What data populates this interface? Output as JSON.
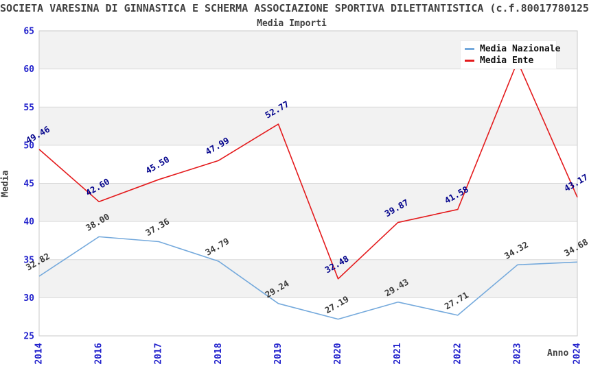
{
  "page": {
    "title": "SOCIETA VARESINA DI GINNASTICA E SCHERMA ASSOCIAZIONE SPORTIVA DILETTANTISTICA (c.f.80017780125",
    "subtitle": "Media Importi"
  },
  "chart_data": {
    "type": "line",
    "title": "SOCIETA VARESINA DI GINNASTICA E SCHERMA ASSOCIAZIONE SPORTIVA DILETTANTISTICA (c.f.80017780125",
    "subtitle": "Media Importi",
    "xlabel": "Anno",
    "ylabel": "Media",
    "ylim": [
      25,
      65
    ],
    "ytick_step": 5,
    "yticks": [
      25,
      30,
      35,
      40,
      45,
      50,
      55,
      60,
      65
    ],
    "grid": "horizontal",
    "band_colors": [
      "#f2f2f2",
      "#ffffff"
    ],
    "legend_position": "top-right",
    "categories": [
      "2014",
      "2016",
      "2017",
      "2018",
      "2019",
      "2020",
      "2021",
      "2022",
      "2023",
      "2024"
    ],
    "series": [
      {
        "name": "Media Nazionale",
        "color": "#74a9dc",
        "label_color": "#3a3a3a",
        "values": [
          32.82,
          38.0,
          37.36,
          34.79,
          29.24,
          27.19,
          29.43,
          27.71,
          34.32,
          34.68
        ],
        "labels": [
          "32.82",
          "38.00",
          "37.36",
          "34.79",
          "29.24",
          "27.19",
          "29.43",
          "27.71",
          "34.32",
          "34.68"
        ]
      },
      {
        "name": "Media Ente",
        "color": "#e41a1c",
        "label_color": "#00008b",
        "values": [
          49.46,
          42.6,
          45.5,
          47.99,
          52.77,
          32.48,
          39.87,
          41.58,
          61.0,
          43.17
        ],
        "labels": [
          "49.46",
          "42.60",
          "45.50",
          "47.99",
          "52.77",
          "32.48",
          "39.87",
          "41.58",
          null,
          "43.17"
        ]
      }
    ]
  },
  "colors": {
    "tick_label": "#2222cc",
    "title_text": "#404040",
    "gridline": "#d9d9d9",
    "plot_frame": "#c9c9c9",
    "background": "#ffffff"
  }
}
